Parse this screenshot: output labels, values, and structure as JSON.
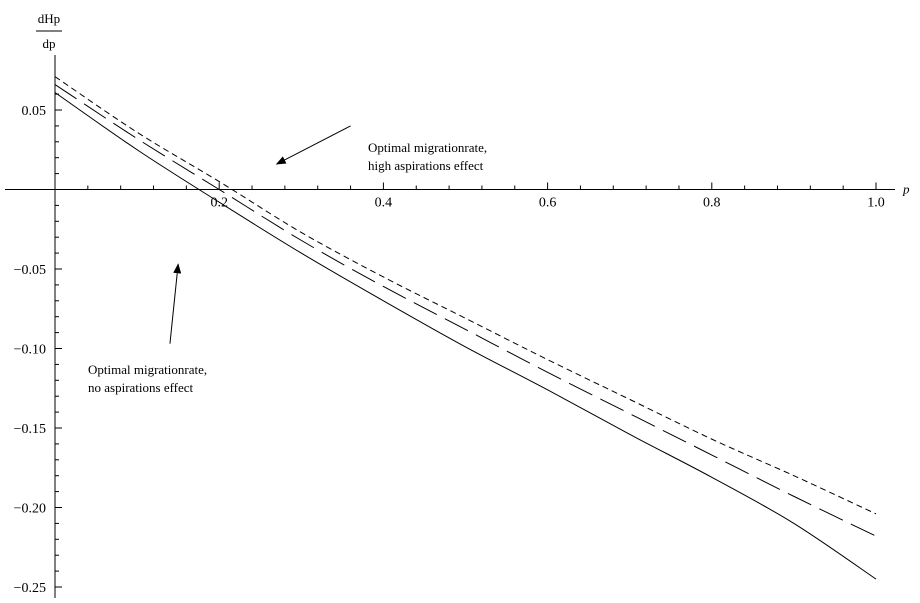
{
  "chart_data": {
    "type": "line",
    "title": "",
    "xlabel": "p",
    "ylabel": {
      "numerator": "dHp",
      "denominator": "dp"
    },
    "xlim": [
      0,
      1.0
    ],
    "ylim": [
      -0.25,
      0.07
    ],
    "grid": false,
    "x_ticks": [
      {
        "value": 0.2,
        "label": "0.2"
      },
      {
        "value": 0.4,
        "label": "0.4"
      },
      {
        "value": 0.6,
        "label": "0.6"
      },
      {
        "value": 0.8,
        "label": "0.8"
      },
      {
        "value": 1.0,
        "label": "1.0"
      }
    ],
    "y_ticks": [
      {
        "value": 0.05,
        "label": "0.05"
      },
      {
        "value": -0.05,
        "label": "−0.05"
      },
      {
        "value": -0.1,
        "label": "−0.10"
      },
      {
        "value": -0.15,
        "label": "−0.15"
      },
      {
        "value": -0.2,
        "label": "−0.20"
      },
      {
        "value": -0.25,
        "label": "−0.25"
      }
    ],
    "series": [
      {
        "style": "short-dash",
        "x": [
          0,
          0.1,
          0.2,
          0.3,
          0.4,
          0.5,
          0.6,
          0.7,
          0.8,
          0.9,
          1.0
        ],
        "y": [
          0.071,
          0.036,
          0.005,
          -0.027,
          -0.055,
          -0.081,
          -0.107,
          -0.132,
          -0.157,
          -0.18,
          -0.204
        ]
      },
      {
        "style": "long-dash",
        "x": [
          0,
          0.1,
          0.2,
          0.3,
          0.4,
          0.5,
          0.6,
          0.7,
          0.8,
          0.9,
          1.0
        ],
        "y": [
          0.066,
          0.032,
          -0.0,
          -0.032,
          -0.061,
          -0.088,
          -0.115,
          -0.141,
          -0.167,
          -0.193,
          -0.218
        ]
      },
      {
        "style": "solid",
        "x": [
          0,
          0.1,
          0.2,
          0.3,
          0.4,
          0.5,
          0.6,
          0.7,
          0.8,
          0.9,
          1.0
        ],
        "y": [
          0.061,
          0.025,
          -0.008,
          -0.04,
          -0.07,
          -0.099,
          -0.126,
          -0.154,
          -0.181,
          -0.21,
          -0.245
        ]
      }
    ],
    "annotations": [
      {
        "lines": [
          "Optimal migrationrate,",
          "high aspirations effect"
        ],
        "arrow_tip": [
          0.27,
          0.016
        ],
        "arrow_tail": [
          0.36,
          0.04
        ]
      },
      {
        "lines": [
          "Optimal migrationrate,",
          "no aspirations effect"
        ],
        "arrow_tip": [
          0.15,
          -0.047
        ],
        "arrow_tail": [
          0.14,
          -0.097
        ]
      }
    ]
  }
}
